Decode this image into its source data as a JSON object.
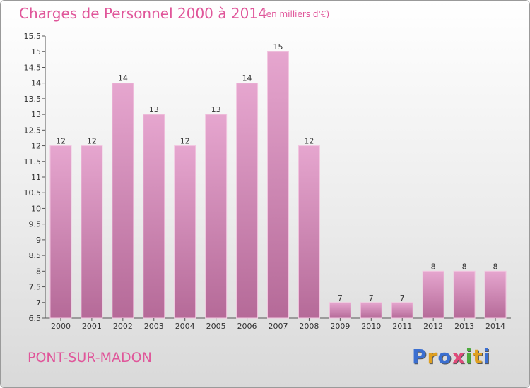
{
  "title": "Charges de Personnel 2000 à 2014",
  "unit": "(en milliers d'€)",
  "commune": "PONT-SUR-MADON",
  "logo": {
    "letters": [
      "P",
      "r",
      "o",
      "x",
      "i",
      "t",
      "i"
    ],
    "colors": [
      "#3b6fd1",
      "#e0a020",
      "#3b6fd1",
      "#e04a7a",
      "#4caa3c",
      "#e0a020",
      "#3b6fd1"
    ]
  },
  "colors": {
    "bar_top": "#e6a6cf",
    "bar_bottom": "#b56a98",
    "title": "#e0569a"
  },
  "chart_data": {
    "type": "bar",
    "categories": [
      "2000",
      "2001",
      "2002",
      "2003",
      "2004",
      "2005",
      "2006",
      "2007",
      "2008",
      "2009",
      "2010",
      "2011",
      "2012",
      "2013",
      "2014"
    ],
    "values": [
      12,
      12,
      14,
      13,
      12,
      13,
      14,
      15,
      12,
      7,
      7,
      7,
      8,
      8,
      8
    ],
    "ylim": [
      6.5,
      15.5
    ],
    "yticks": [
      6.5,
      7,
      7.5,
      8,
      8.5,
      9,
      9.5,
      10,
      10.5,
      11,
      11.5,
      12,
      12.5,
      13,
      13.5,
      14,
      14.5,
      15,
      15.5
    ],
    "ytick_labels": [
      "6.5",
      "7",
      "7.5",
      "8",
      "8.5",
      "9",
      "9.5",
      "10",
      "10.5",
      "11",
      "11.5",
      "12",
      "12.5",
      "13",
      "13.5",
      "14",
      "14.5",
      "15",
      "15.5"
    ],
    "grid": false,
    "xlabel": "",
    "ylabel": ""
  }
}
